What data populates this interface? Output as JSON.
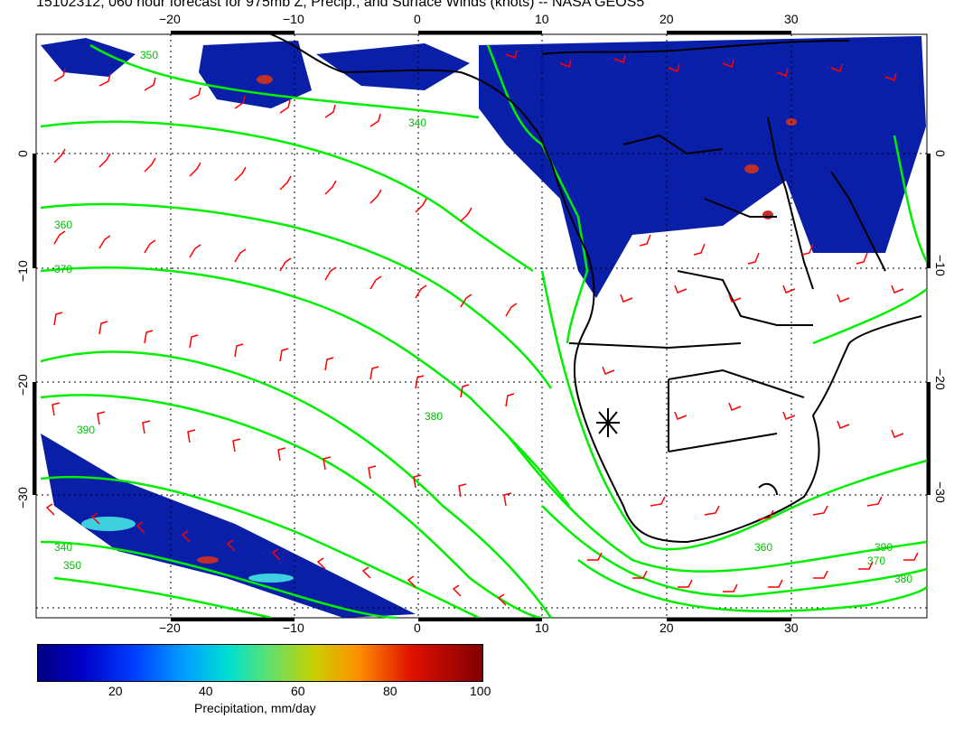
{
  "title": "15102312, 060 hour forecast for 975mb Z, Precip., and Surface Winds (knots) -- NASA GEOS5",
  "map": {
    "lon_ticks_top": [
      "−20",
      "−10",
      "0",
      "10",
      "20",
      "30"
    ],
    "lon_ticks_bottom": [
      "−20",
      "−10",
      "0",
      "10",
      "20",
      "30"
    ],
    "lat_ticks_left": [
      "0",
      "−10",
      "−20",
      "−30"
    ],
    "lat_ticks_right": [
      "0",
      "−10",
      "−20",
      "−30"
    ],
    "contour_labels": [
      "350",
      "340",
      "360",
      "370",
      "380",
      "390",
      "340",
      "350",
      "360",
      "370",
      "380",
      "390"
    ],
    "colors": {
      "contour": "#00ee00",
      "wind_barb": "#ff0000",
      "coast": "#000000",
      "grid": "#000000"
    },
    "marker_icon": "asterisk-icon"
  },
  "colorbar": {
    "ticks": [
      "20",
      "40",
      "60",
      "80",
      "100"
    ],
    "title": "Precipitation, mm/day"
  }
}
